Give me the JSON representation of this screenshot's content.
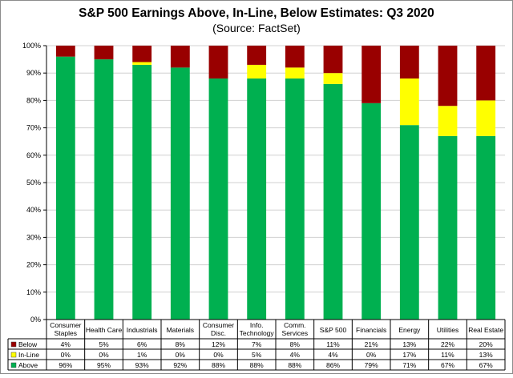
{
  "chart_data": {
    "type": "bar",
    "stacked": true,
    "title": "S&P 500 Earnings Above, In-Line, Below Estimates: Q3 2020",
    "subtitle": "(Source: FactSet)",
    "categories": [
      [
        "Consumer",
        "Staples"
      ],
      [
        "Health Care"
      ],
      [
        "Industrials"
      ],
      [
        "Materials"
      ],
      [
        "Consumer",
        "Disc."
      ],
      [
        "Info.",
        "Technology"
      ],
      [
        "Comm.",
        "Services"
      ],
      [
        "S&P 500"
      ],
      [
        "Financials"
      ],
      [
        "Energy"
      ],
      [
        "Utilities"
      ],
      [
        "Real Estate"
      ]
    ],
    "y_ticks": [
      "0%",
      "10%",
      "20%",
      "30%",
      "40%",
      "50%",
      "60%",
      "70%",
      "80%",
      "90%",
      "100%"
    ],
    "ylim": [
      0,
      100
    ],
    "grid": true,
    "legend_placement": "data table, left",
    "series": [
      {
        "name": "Below",
        "color": "#990000",
        "values": [
          4,
          5,
          6,
          8,
          12,
          7,
          8,
          11,
          21,
          13,
          22,
          20
        ],
        "labels": [
          "4%",
          "5%",
          "6%",
          "8%",
          "12%",
          "7%",
          "8%",
          "11%",
          "21%",
          "13%",
          "22%",
          "20%"
        ]
      },
      {
        "name": "In-Line",
        "color": "#ffff00",
        "values": [
          0,
          0,
          1,
          0,
          0,
          5,
          4,
          4,
          0,
          17,
          11,
          13
        ],
        "labels": [
          "0%",
          "0%",
          "1%",
          "0%",
          "0%",
          "5%",
          "4%",
          "4%",
          "0%",
          "17%",
          "11%",
          "13%"
        ]
      },
      {
        "name": "Above",
        "color": "#00b050",
        "values": [
          96,
          95,
          93,
          92,
          88,
          88,
          88,
          86,
          79,
          71,
          67,
          67
        ],
        "labels": [
          "96%",
          "95%",
          "93%",
          "92%",
          "88%",
          "88%",
          "88%",
          "86%",
          "79%",
          "71%",
          "67%",
          "67%"
        ]
      }
    ]
  }
}
